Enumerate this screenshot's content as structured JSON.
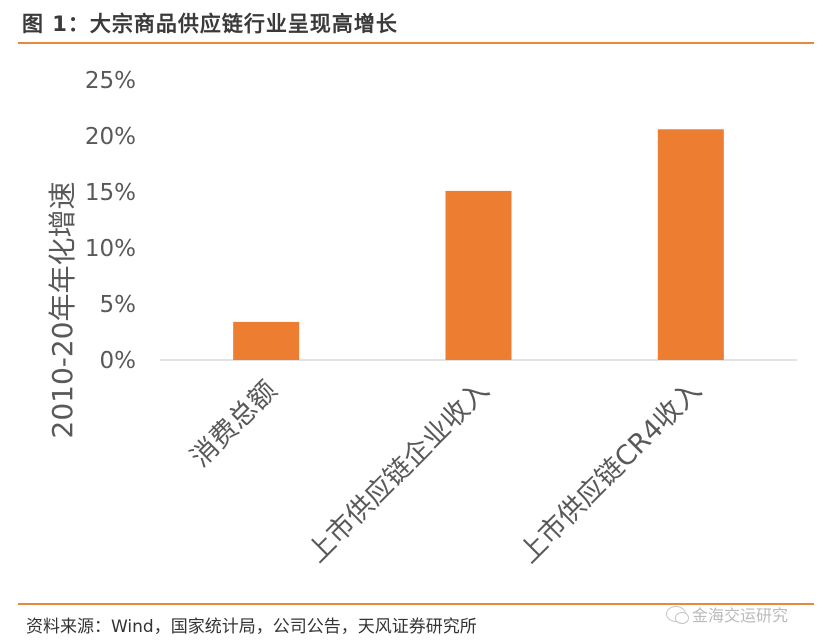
{
  "figure": {
    "title": "图 1：大宗商品供应链行业呈现高增长",
    "source": "资料来源：Wind，国家统计局，公司公告，天风证券研究所",
    "watermark": "金海交运研究"
  },
  "colors": {
    "bar": "#ed7d31",
    "rule": "#e88a3a",
    "axis": "#d9d9d9"
  },
  "chart_data": {
    "type": "bar",
    "categories": [
      "消费总额",
      "上市供应链企业收入",
      "上市供应链CR4收入"
    ],
    "values": [
      3.4,
      15.1,
      20.6
    ],
    "ylabel": "2010-20年年化增速",
    "ylim": [
      0,
      25
    ],
    "yticks": [
      "0%",
      "5%",
      "10%",
      "15%",
      "20%",
      "25%"
    ],
    "grid": false,
    "legend": "none"
  }
}
